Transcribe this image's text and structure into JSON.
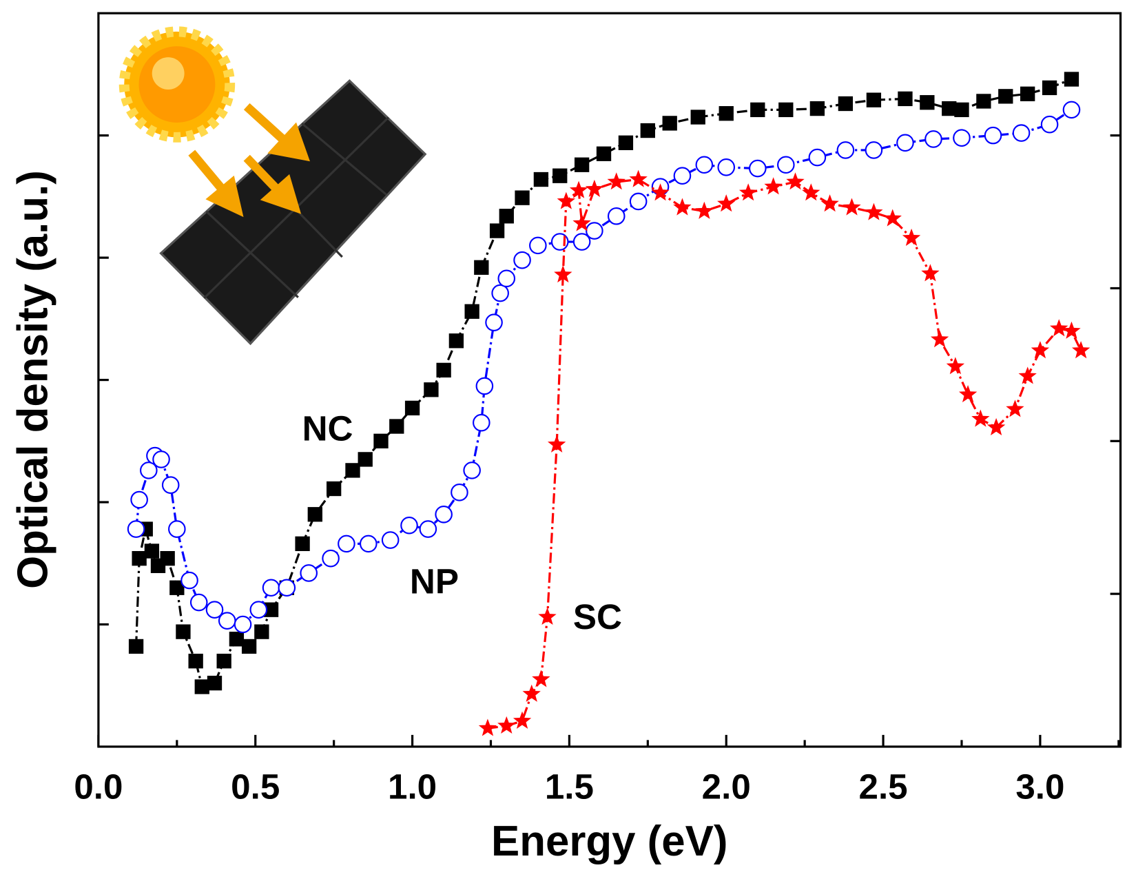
{
  "chart_data": {
    "type": "line",
    "xlabel": "Energy (eV)",
    "ylabel": "Optical density (a.u.)",
    "xlim": [
      0,
      3.256
    ],
    "ylim": [
      0,
      6
    ],
    "y2lim": [
      0,
      4.8
    ],
    "xticks": [
      {
        "value": 0,
        "label": "0.0"
      },
      0.5,
      {
        "value": 1,
        "label": "1.0"
      },
      1.5,
      {
        "value": 2,
        "label": "2.0"
      },
      2.5,
      {
        "value": 3,
        "label": "3.0"
      }
    ],
    "xminorticks": [
      0.25,
      0.75,
      1.25,
      1.75,
      2.25,
      2.75,
      3.25
    ],
    "yticks": [
      1,
      2,
      3,
      4,
      5
    ],
    "y2ticks": [
      1,
      2,
      3,
      4
    ],
    "annotations": [
      {
        "text": "NC",
        "x": 0.73,
        "y": 2.58
      },
      {
        "text": "NP",
        "x": 1.07,
        "y": 1.33
      },
      {
        "text": "SC",
        "x": 1.59,
        "y": 1.04
      }
    ],
    "series": [
      {
        "name": "NC",
        "color": "#000000",
        "marker": "square",
        "x": [
          0.12,
          0.13,
          0.15,
          0.17,
          0.19,
          0.22,
          0.25,
          0.27,
          0.31,
          0.33,
          0.37,
          0.4,
          0.44,
          0.48,
          0.52,
          0.55,
          0.6,
          0.65,
          0.69,
          0.75,
          0.81,
          0.85,
          0.9,
          0.95,
          1.0,
          1.06,
          1.1,
          1.14,
          1.19,
          1.22,
          1.27,
          1.3,
          1.35,
          1.41,
          1.47,
          1.54,
          1.61,
          1.68,
          1.75,
          1.82,
          1.91,
          2.0,
          2.1,
          2.19,
          2.29,
          2.38,
          2.47,
          2.57,
          2.64,
          2.71,
          2.75,
          2.82,
          2.89,
          2.96,
          3.03,
          3.1
        ],
        "values": [
          0.82,
          1.54,
          1.78,
          1.6,
          1.48,
          1.54,
          1.3,
          0.94,
          0.7,
          0.49,
          0.52,
          0.7,
          0.88,
          0.82,
          0.94,
          1.12,
          1.3,
          1.66,
          1.9,
          2.11,
          2.26,
          2.35,
          2.5,
          2.62,
          2.77,
          2.92,
          3.08,
          3.32,
          3.56,
          3.92,
          4.22,
          4.34,
          4.49,
          4.64,
          4.67,
          4.76,
          4.85,
          4.94,
          5.04,
          5.1,
          5.15,
          5.18,
          5.21,
          5.21,
          5.22,
          5.26,
          5.29,
          5.3,
          5.27,
          5.22,
          5.21,
          5.28,
          5.32,
          5.34,
          5.39,
          5.46
        ]
      },
      {
        "name": "NP",
        "color": "#0000ff",
        "marker": "circle",
        "x": [
          0.12,
          0.13,
          0.16,
          0.18,
          0.2,
          0.23,
          0.25,
          0.29,
          0.32,
          0.37,
          0.41,
          0.46,
          0.51,
          0.55,
          0.6,
          0.67,
          0.74,
          0.79,
          0.86,
          0.93,
          0.99,
          1.05,
          1.1,
          1.15,
          1.19,
          1.22,
          1.23,
          1.26,
          1.28,
          1.3,
          1.35,
          1.4,
          1.47,
          1.54,
          1.58,
          1.65,
          1.72,
          1.79,
          1.86,
          1.93,
          2.0,
          2.1,
          2.19,
          2.29,
          2.38,
          2.47,
          2.57,
          2.66,
          2.75,
          2.85,
          2.94,
          3.03,
          3.1
        ],
        "values": [
          1.78,
          2.02,
          2.26,
          2.38,
          2.35,
          2.14,
          1.78,
          1.36,
          1.18,
          1.12,
          1.03,
          1.0,
          1.12,
          1.3,
          1.3,
          1.42,
          1.54,
          1.66,
          1.66,
          1.69,
          1.81,
          1.78,
          1.9,
          2.08,
          2.26,
          2.65,
          2.95,
          3.47,
          3.71,
          3.83,
          3.98,
          4.1,
          4.13,
          4.13,
          4.22,
          4.34,
          4.46,
          4.58,
          4.67,
          4.76,
          4.74,
          4.73,
          4.76,
          4.82,
          4.88,
          4.88,
          4.94,
          4.97,
          4.98,
          5.0,
          5.02,
          5.09,
          5.21
        ]
      },
      {
        "name": "SC",
        "color": "#ff0000",
        "marker": "star",
        "x": [
          1.24,
          1.3,
          1.35,
          1.38,
          1.41,
          1.43,
          1.46,
          1.48,
          1.49,
          1.53,
          1.54,
          1.58,
          1.65,
          1.72,
          1.79,
          1.86,
          1.93,
          2.0,
          2.07,
          2.15,
          2.22,
          2.27,
          2.33,
          2.4,
          2.47,
          2.53,
          2.59,
          2.65,
          2.68,
          2.73,
          2.77,
          2.81,
          2.86,
          2.92,
          2.96,
          3.0,
          3.06,
          3.1,
          3.13
        ],
        "values": [
          0.15,
          0.17,
          0.21,
          0.43,
          0.55,
          1.06,
          2.47,
          3.86,
          4.46,
          4.55,
          4.28,
          4.56,
          4.62,
          4.64,
          4.53,
          4.41,
          4.38,
          4.44,
          4.53,
          4.58,
          4.62,
          4.53,
          4.44,
          4.41,
          4.37,
          4.32,
          4.16,
          3.87,
          3.33,
          3.11,
          2.88,
          2.68,
          2.61,
          2.76,
          3.03,
          3.24,
          3.42,
          3.4,
          3.24
        ]
      }
    ]
  }
}
